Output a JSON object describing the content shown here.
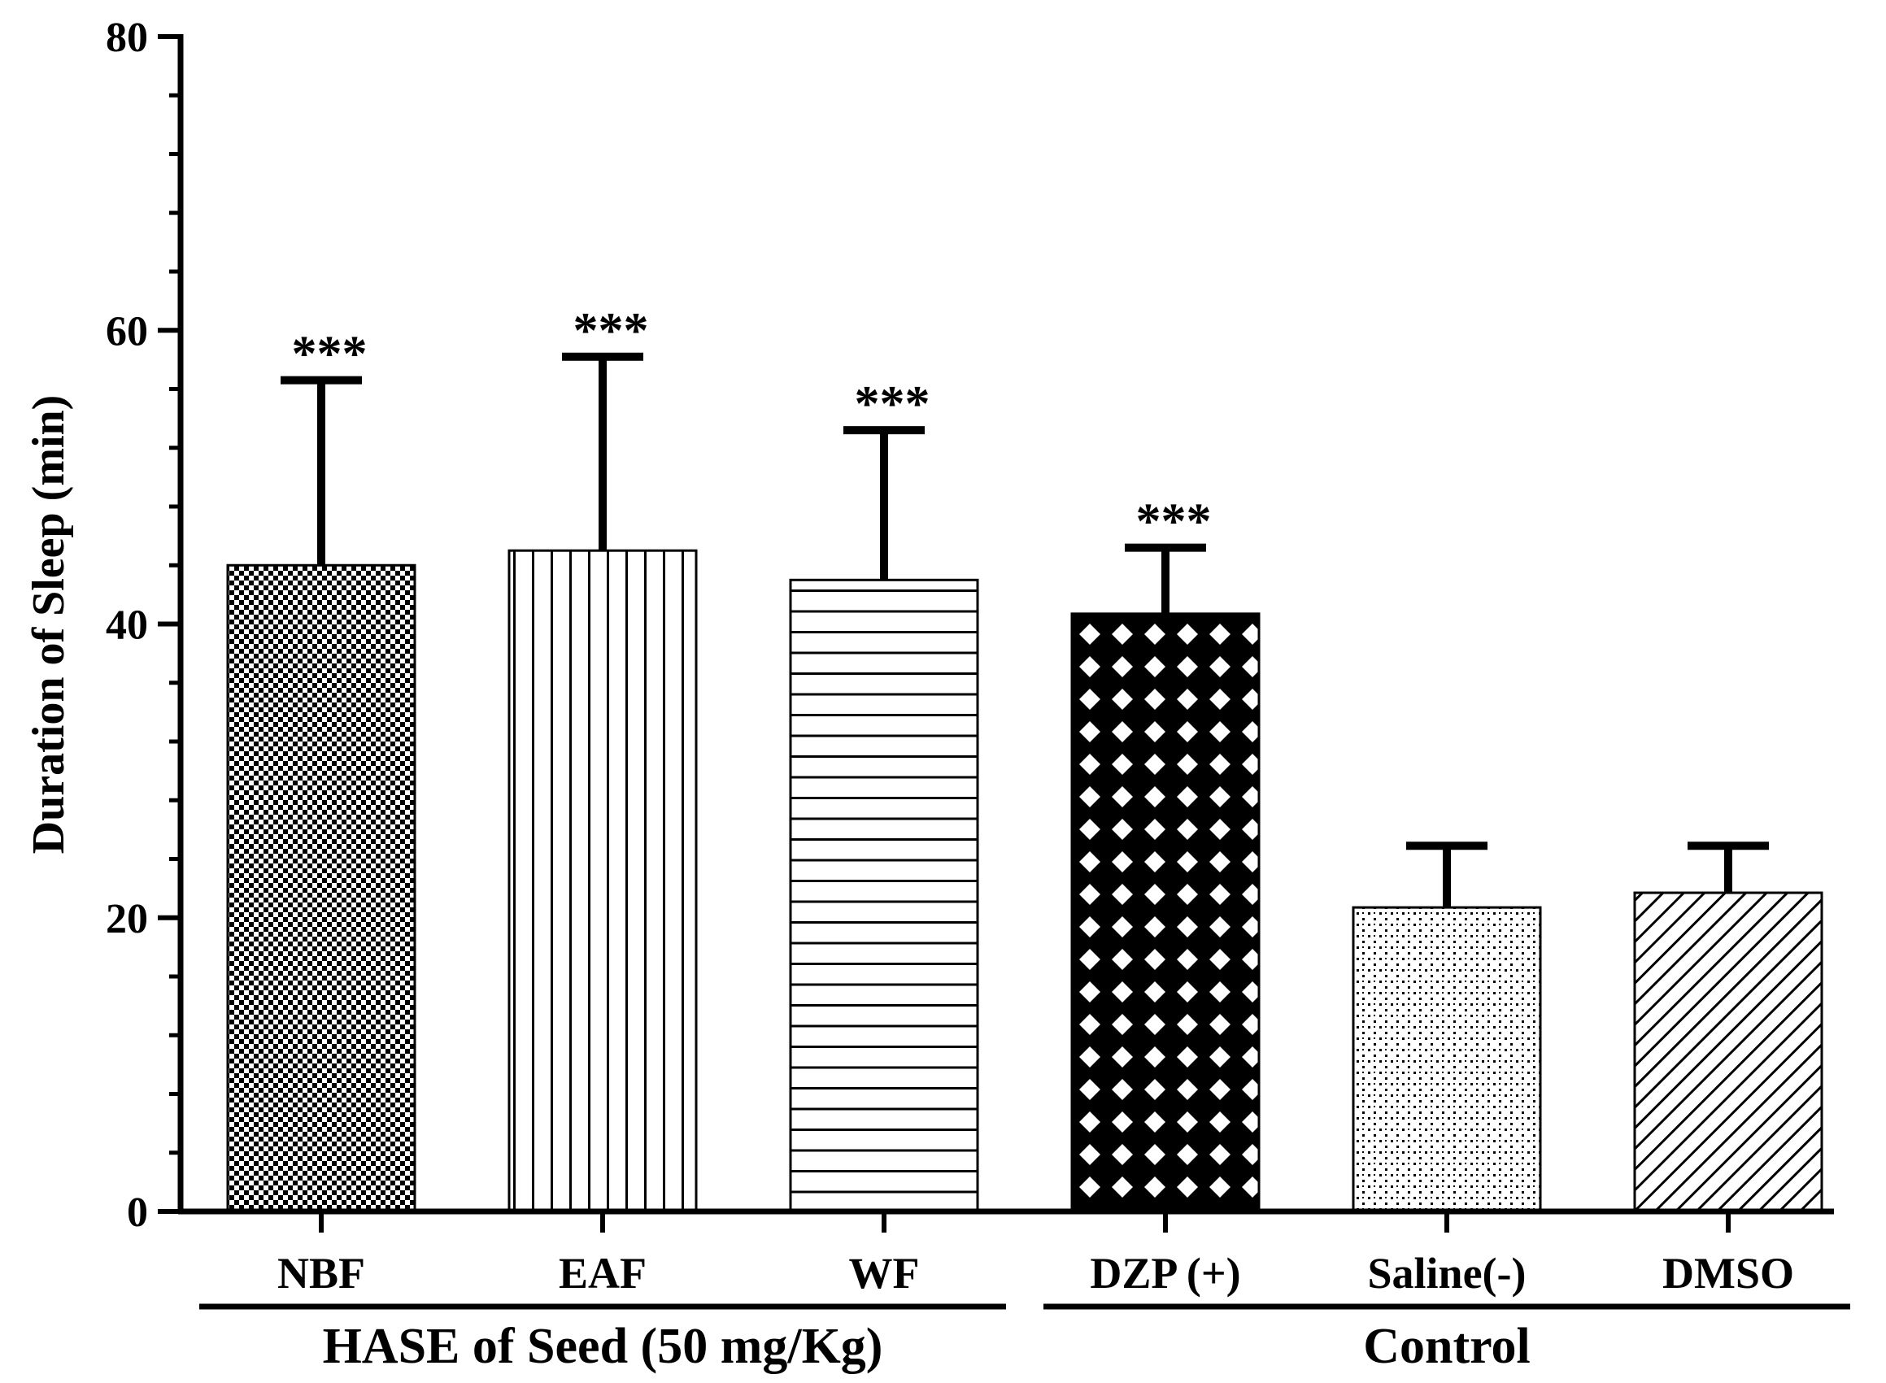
{
  "chart_data": {
    "type": "bar",
    "title": "",
    "xlabel": "",
    "ylabel": "Duration of Sleep (min)",
    "ylim": [
      0,
      80
    ],
    "yticks": [
      0,
      20,
      40,
      60,
      80
    ],
    "yminor_step": 4,
    "categories": [
      "NBF",
      "EAF",
      "WF",
      "DZP (+)",
      "Saline(-)",
      "DMSO"
    ],
    "values": [
      44,
      45,
      43,
      40.7,
      20.7,
      21.7
    ],
    "error_upper": [
      12.6,
      13.2,
      10.2,
      4.5,
      4.2,
      3.2
    ],
    "significance": [
      "***",
      "***",
      "***",
      "***",
      "",
      ""
    ],
    "patterns": [
      "checker",
      "vertical",
      "horizontal",
      "crosshatch",
      "dots",
      "diagonal"
    ],
    "groups": [
      {
        "label": "HASE of Seed (50 mg/Kg)",
        "first": 0,
        "last": 2
      },
      {
        "label": "Control",
        "first": 3,
        "last": 5
      }
    ],
    "colors": {
      "ink": "#000000",
      "background": "#ffffff"
    }
  }
}
